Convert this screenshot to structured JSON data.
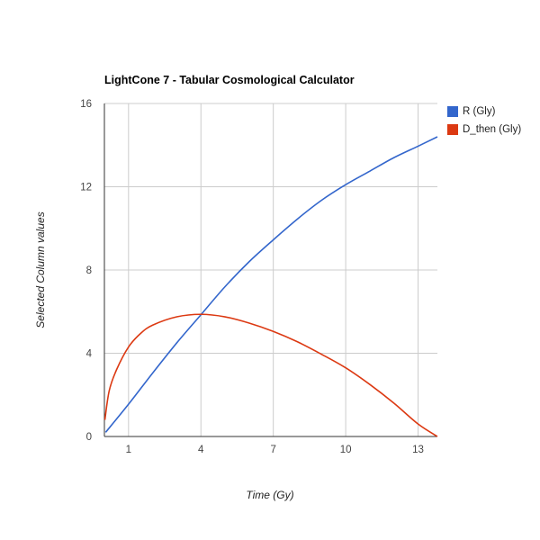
{
  "chart_data": {
    "type": "line",
    "title": "LightCone 7 - Tabular Cosmological Calculator",
    "xlabel": "Time (Gy)",
    "ylabel": "Selected Column values",
    "xlim": [
      0,
      13.8
    ],
    "ylim": [
      0,
      16
    ],
    "x_ticks": [
      1,
      4,
      7,
      10,
      13
    ],
    "y_ticks": [
      0,
      4,
      8,
      12,
      16
    ],
    "grid": true,
    "legend_position": "right",
    "series": [
      {
        "name": "R (Gly)",
        "color": "#3366cc",
        "points": [
          [
            0.05,
            0.2
          ],
          [
            1,
            1.55
          ],
          [
            2,
            3.05
          ],
          [
            3,
            4.5
          ],
          [
            4,
            5.85
          ],
          [
            5,
            7.2
          ],
          [
            6,
            8.4
          ],
          [
            7,
            9.45
          ],
          [
            8,
            10.45
          ],
          [
            9,
            11.35
          ],
          [
            10,
            12.1
          ],
          [
            11,
            12.75
          ],
          [
            12,
            13.4
          ],
          [
            13,
            13.95
          ],
          [
            13.8,
            14.4
          ]
        ]
      },
      {
        "name": "D_then (Gly)",
        "color": "#dc3912",
        "points": [
          [
            0.02,
            0.8
          ],
          [
            0.2,
            2.2
          ],
          [
            0.5,
            3.2
          ],
          [
            1,
            4.3
          ],
          [
            1.5,
            4.95
          ],
          [
            2,
            5.35
          ],
          [
            3,
            5.75
          ],
          [
            4,
            5.87
          ],
          [
            5,
            5.75
          ],
          [
            6,
            5.45
          ],
          [
            7,
            5.05
          ],
          [
            8,
            4.55
          ],
          [
            9,
            3.95
          ],
          [
            10,
            3.3
          ],
          [
            11,
            2.5
          ],
          [
            12,
            1.6
          ],
          [
            13,
            0.6
          ],
          [
            13.8,
            0
          ]
        ]
      }
    ]
  }
}
